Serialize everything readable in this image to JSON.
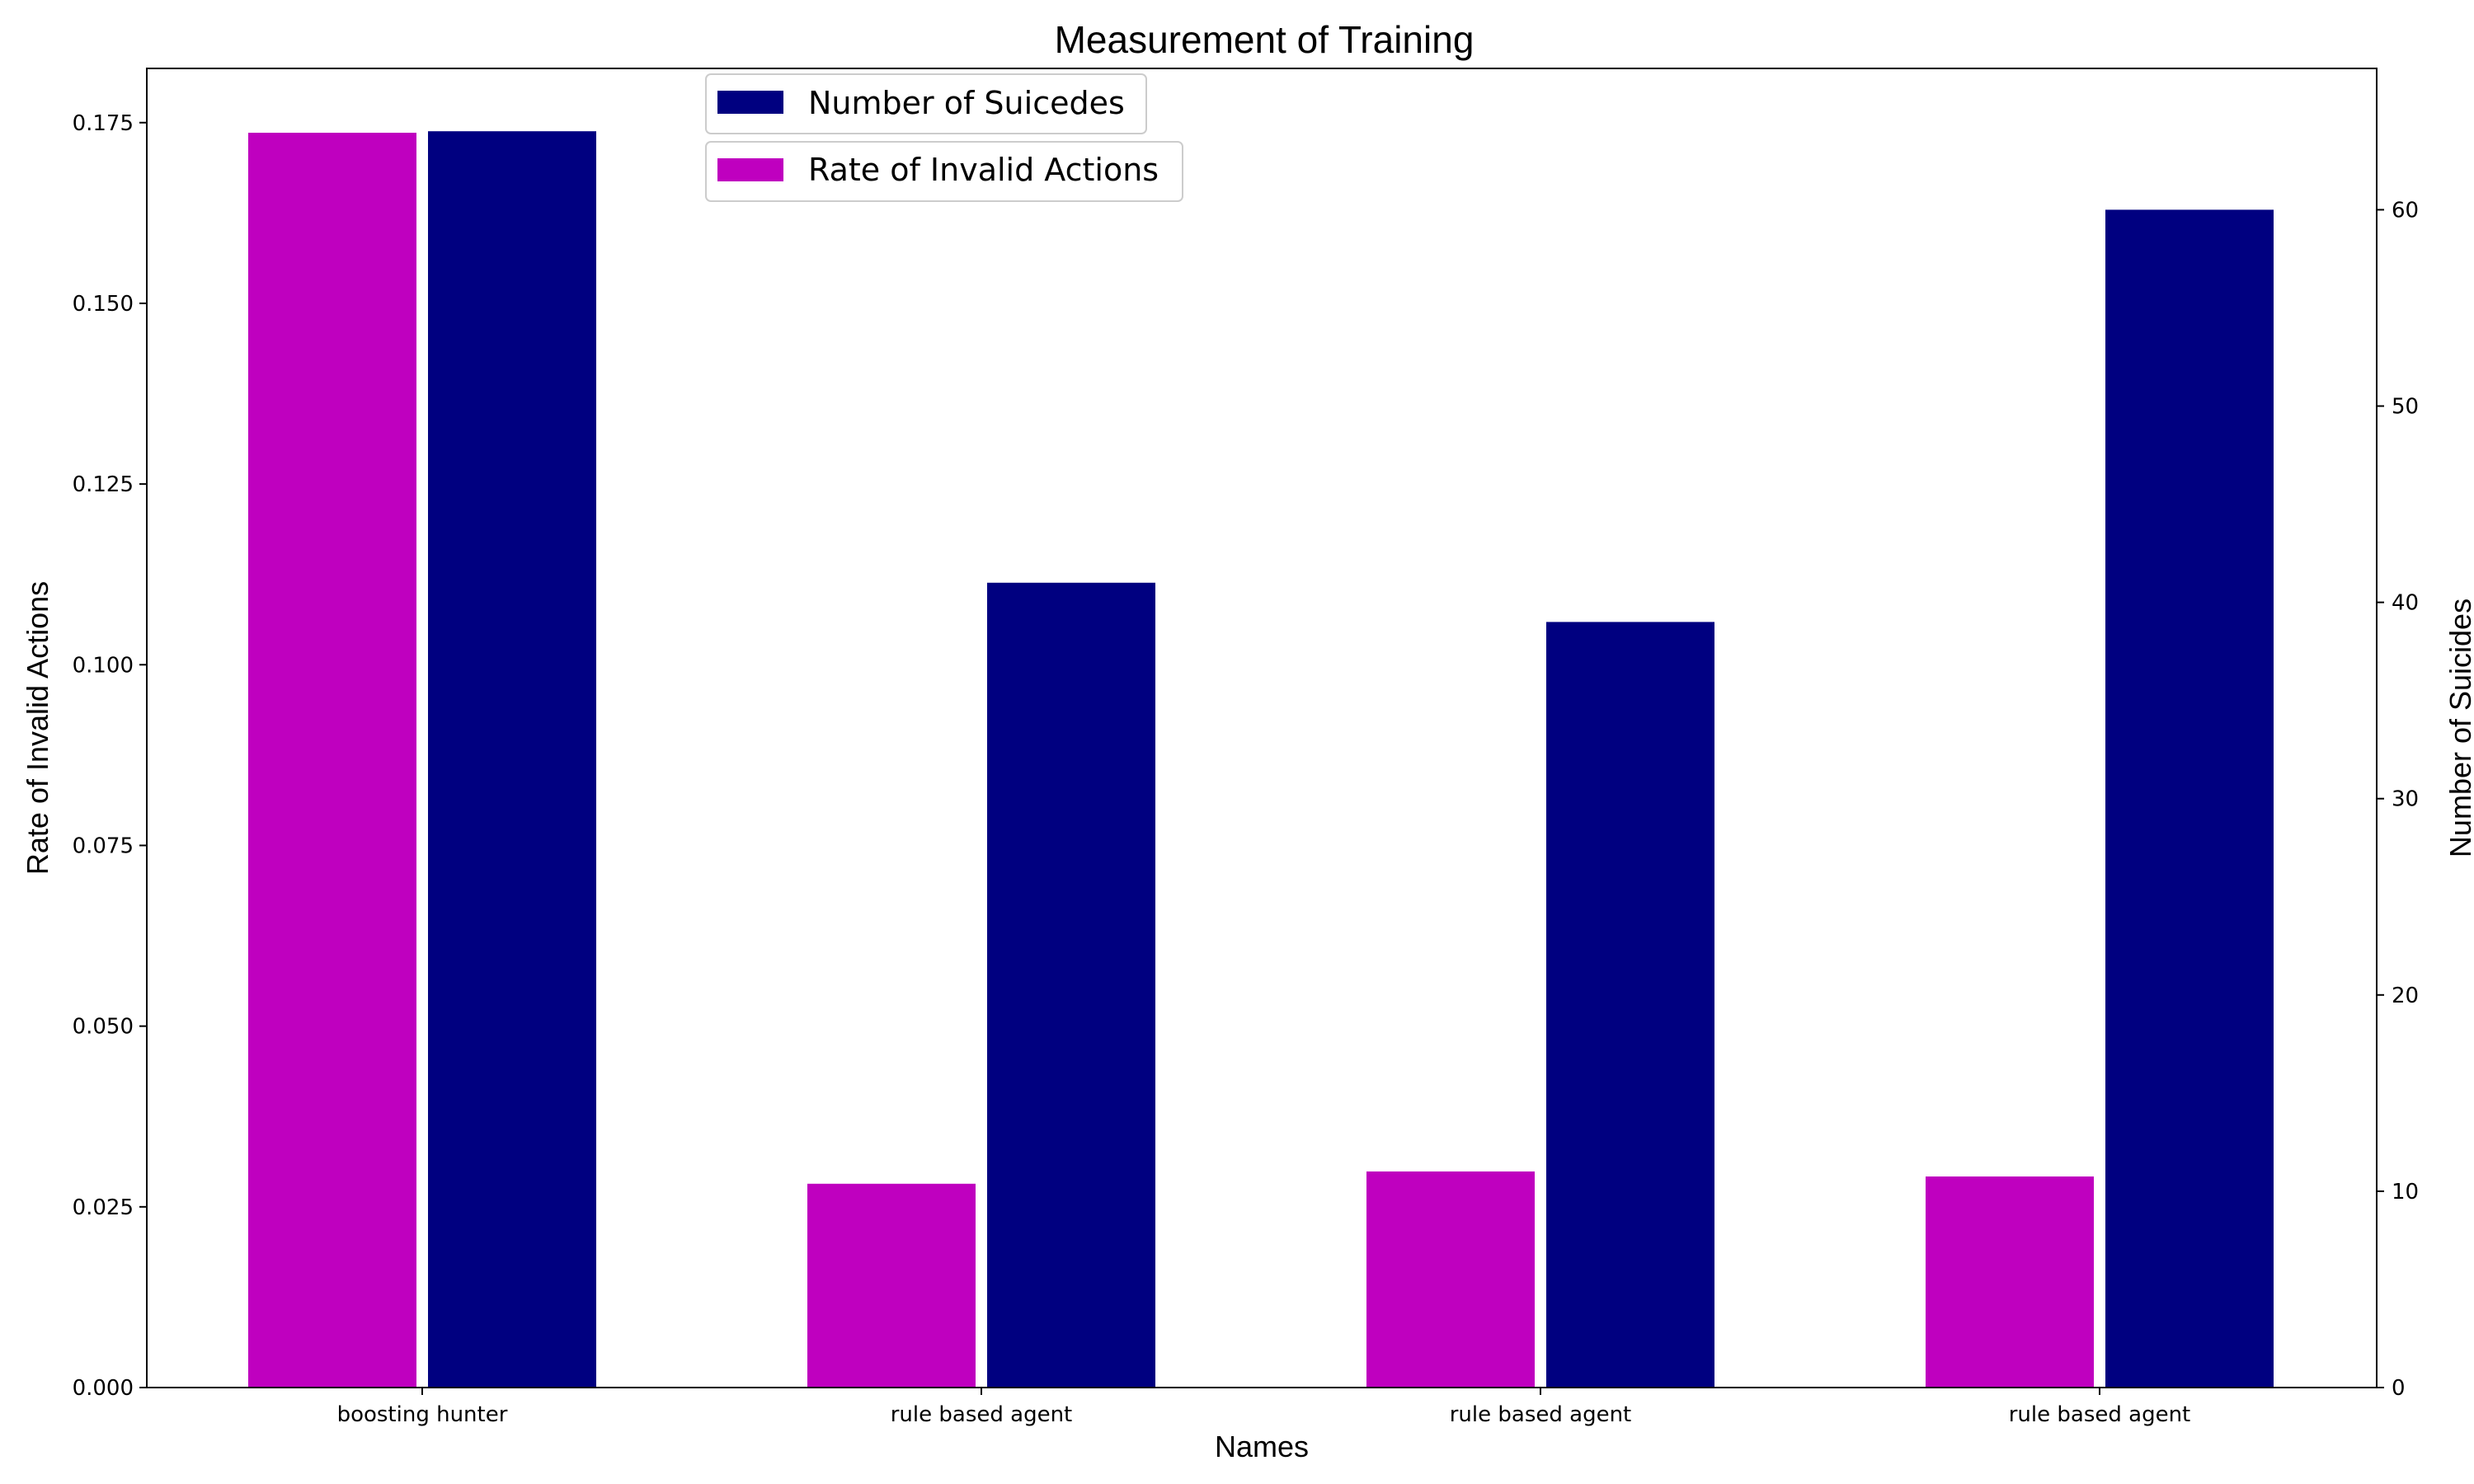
{
  "chart_data": {
    "type": "bar",
    "title": "Measurement of Training",
    "xlabel": "Names",
    "ylabel_left": "Rate of Invalid Actions",
    "ylabel_right": "Number of Suicides",
    "categories": [
      "boosting hunter",
      "rule based agent",
      "rule based agent",
      "rule based agent"
    ],
    "series": [
      {
        "name": "Rate of Invalid Actions",
        "axis": "left",
        "color": "#bf00bf",
        "values": [
          0.1736,
          0.0282,
          0.0299,
          0.0292
        ]
      },
      {
        "name": "Number of Suicedes",
        "axis": "right",
        "color": "#000080",
        "values": [
          64,
          41,
          39,
          60
        ]
      }
    ],
    "ylim_left": [
      0,
      0.1825
    ],
    "ylim_right": [
      0,
      67.2
    ],
    "yticks_left": [
      "0.000",
      "0.025",
      "0.050",
      "0.075",
      "0.100",
      "0.125",
      "0.150",
      "0.175"
    ],
    "yticks_right": [
      "0",
      "10",
      "20",
      "30",
      "40",
      "50",
      "60"
    ],
    "legend": [
      {
        "label": "Number of Suicedes",
        "color": "#000080"
      },
      {
        "label": "Rate of Invalid Actions",
        "color": "#bf00bf"
      }
    ],
    "legend_position": "top-center",
    "grid": false
  }
}
